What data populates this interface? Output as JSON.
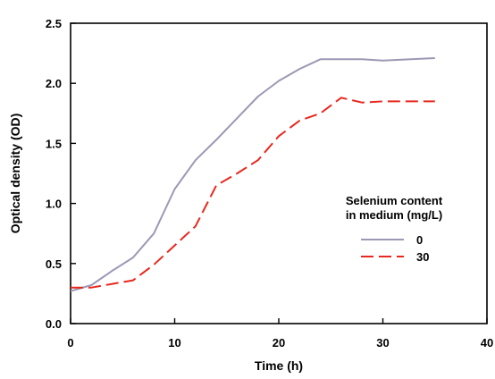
{
  "chart_data": {
    "type": "line",
    "xlabel": "Time (h)",
    "ylabel": "Optical density (OD)",
    "xlim": [
      0,
      40
    ],
    "ylim": [
      0,
      2.5
    ],
    "xticks": [
      "0",
      "10",
      "20",
      "30",
      "40"
    ],
    "yticks": [
      "0.0",
      "0.5",
      "1.0",
      "1.5",
      "2.0",
      "2.5"
    ],
    "legend_title": [
      "Selenium content",
      "in medium (mg/L)"
    ],
    "legend_position": "right-middle",
    "grid": false,
    "series": [
      {
        "name": "0",
        "color": "#9c98b4",
        "dash": "solid",
        "x": [
          0,
          2,
          4,
          6,
          8,
          10,
          12,
          14,
          16,
          18,
          20,
          22,
          24,
          26,
          28,
          30,
          35
        ],
        "y": [
          0.27,
          0.32,
          0.44,
          0.55,
          0.75,
          1.12,
          1.36,
          1.53,
          1.71,
          1.89,
          2.02,
          2.12,
          2.2,
          2.2,
          2.2,
          2.19,
          2.21
        ]
      },
      {
        "name": "30",
        "color": "#e8281e",
        "dash": "dashed",
        "x": [
          0,
          2,
          4,
          6,
          8,
          10,
          12,
          14,
          16,
          18,
          20,
          22,
          24,
          26,
          28,
          30,
          35
        ],
        "y": [
          0.3,
          0.3,
          0.33,
          0.36,
          0.49,
          0.65,
          0.81,
          1.15,
          1.25,
          1.36,
          1.56,
          1.69,
          1.75,
          1.88,
          1.84,
          1.85,
          1.85
        ]
      }
    ]
  }
}
